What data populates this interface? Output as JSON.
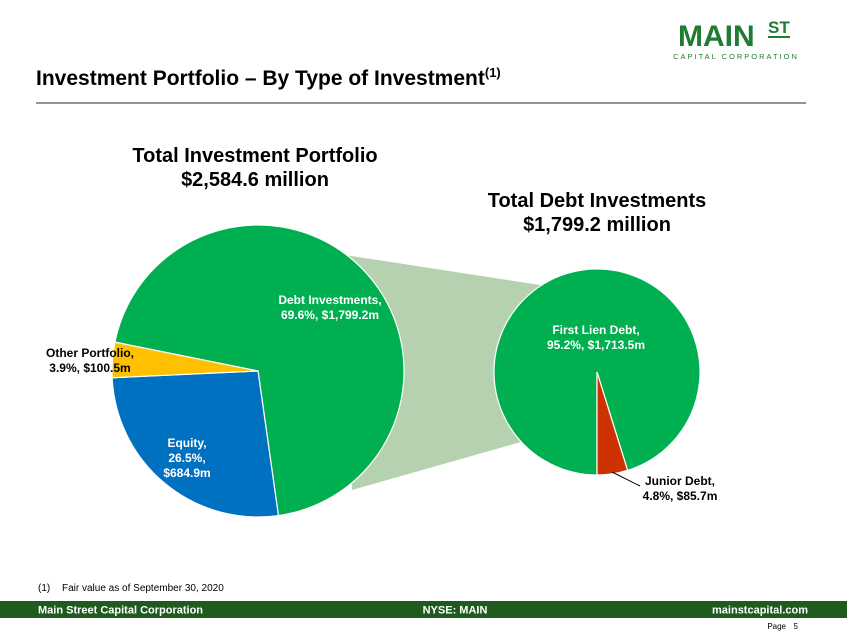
{
  "header": {
    "title": "Investment Portfolio – By Type of Investment",
    "title_note": "(1)",
    "logo": {
      "main": "MAIN",
      "st": "ST",
      "sub": "CAPITAL CORPORATION"
    }
  },
  "chart_data": [
    {
      "type": "pie",
      "title": [
        "Total Investment Portfolio",
        "$2,584.6 million"
      ],
      "categories": [
        "Debt Investments,",
        "Equity,",
        "Other Portfolio,"
      ],
      "values": [
        69.6,
        26.5,
        3.9
      ],
      "value_labels": [
        [
          "69.6%, $1,799.2m"
        ],
        [
          "26.5%,",
          "$684.9m"
        ],
        [
          "3.9%, $100.5m"
        ]
      ],
      "colors": [
        "#00b050",
        "#0070c0",
        "#ffc000"
      ]
    },
    {
      "type": "pie",
      "title": [
        "Total Debt Investments",
        "$1,799.2 million"
      ],
      "categories": [
        "First Lien Debt,",
        "Junior Debt,"
      ],
      "values": [
        95.2,
        4.8
      ],
      "value_labels": [
        [
          "95.2%, $1,713.5m"
        ],
        [
          "4.8%, $85.7m"
        ]
      ],
      "colors": [
        "#00b050",
        "#cc3300"
      ]
    }
  ],
  "footnote": {
    "marker": "(1)",
    "text": "Fair value as of September 30, 2020"
  },
  "footer": {
    "left": "Main Street Capital Corporation",
    "center": "NYSE: MAIN",
    "right": "mainstcapital.com",
    "page_label": "Page",
    "page": "5"
  }
}
